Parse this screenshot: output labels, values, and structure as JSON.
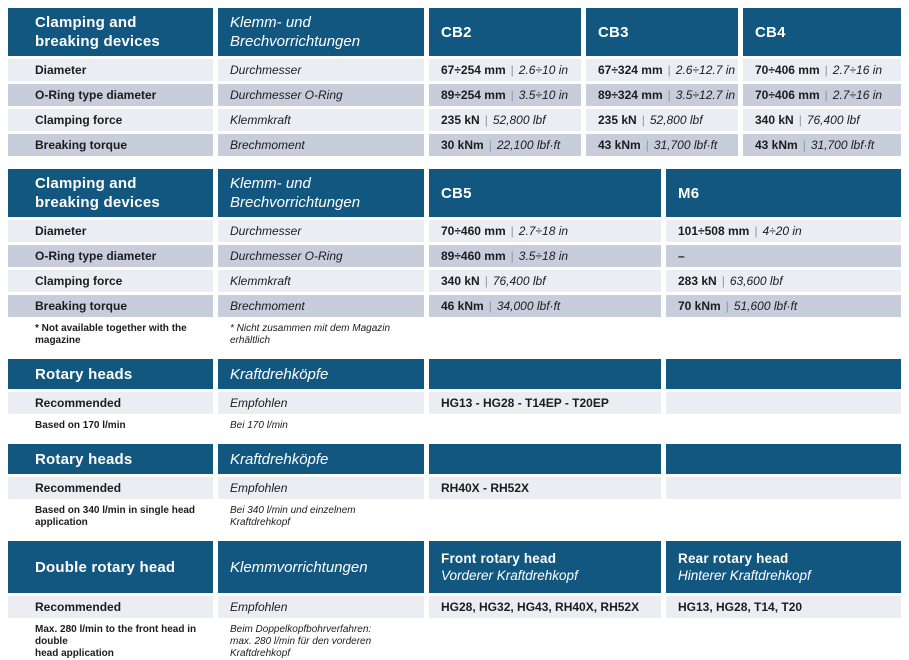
{
  "colors": {
    "header_blue": "#125780",
    "row_light": "#EBEDF3",
    "row_dark": "#C8CDDB",
    "separator": "#8C95A8"
  },
  "table1": {
    "title_en": "Clamping and\nbreaking devices",
    "title_de": "Klemm- und\nBrechvorrichtungen",
    "columns": [
      "CB2",
      "CB3",
      "CB4"
    ],
    "rows": [
      {
        "label_en": "Diameter",
        "label_de": "Durchmesser",
        "values": [
          {
            "metric": "67÷254 mm",
            "sep": "|",
            "imperial": "2.6÷10 in"
          },
          {
            "metric": "67÷324 mm",
            "sep": "|",
            "imperial": "2.6÷12.7 in"
          },
          {
            "metric": "70÷406 mm",
            "sep": "|",
            "imperial": "2.7÷16 in"
          }
        ]
      },
      {
        "label_en": "O-Ring type diameter",
        "label_de": "Durchmesser O-Ring",
        "values": [
          {
            "metric": "89÷254 mm",
            "sep": "|",
            "imperial": "3.5÷10 in"
          },
          {
            "metric": "89÷324 mm",
            "sep": "|",
            "imperial": "3.5÷12.7 in"
          },
          {
            "metric": "70÷406 mm",
            "sep": "|",
            "imperial": "2.7÷16 in"
          }
        ]
      },
      {
        "label_en": "Clamping force",
        "label_de": "Klemmkraft",
        "values": [
          {
            "metric": "235 kN",
            "sep": "|",
            "imperial": "52,800 lbf"
          },
          {
            "metric": "235 kN",
            "sep": "|",
            "imperial": "52,800 lbf"
          },
          {
            "metric": "340 kN",
            "sep": "|",
            "imperial": "76,400 lbf"
          }
        ]
      },
      {
        "label_en": "Breaking torque",
        "label_de": "Brechmoment",
        "values": [
          {
            "metric": "30 kNm",
            "sep": "|",
            "imperial": "22,100 lbf·ft"
          },
          {
            "metric": "43 kNm",
            "sep": "|",
            "imperial": "31,700 lbf·ft"
          },
          {
            "metric": "43 kNm",
            "sep": "|",
            "imperial": "31,700 lbf·ft"
          }
        ]
      }
    ]
  },
  "table2": {
    "title_en": "Clamping and\nbreaking devices",
    "title_de": "Klemm- und\nBrechvorrichtungen",
    "columns": [
      "CB5",
      "M6"
    ],
    "rows": [
      {
        "label_en": "Diameter",
        "label_de": "Durchmesser",
        "values": [
          {
            "metric": "70÷460 mm",
            "sep": "|",
            "imperial": "2.7÷18 in"
          },
          {
            "metric": "101÷508 mm",
            "sep": "|",
            "imperial": "4÷20 in"
          }
        ]
      },
      {
        "label_en": "O-Ring type diameter",
        "label_de": "Durchmesser O-Ring",
        "values": [
          {
            "metric": "89÷460 mm",
            "sep": "|",
            "imperial": "3.5÷18 in"
          },
          {
            "metric": "–",
            "sep": "",
            "imperial": ""
          }
        ]
      },
      {
        "label_en": "Clamping force",
        "label_de": "Klemmkraft",
        "values": [
          {
            "metric": "340 kN",
            "sep": "|",
            "imperial": "76,400 lbf"
          },
          {
            "metric": "283 kN",
            "sep": "|",
            "imperial": "63,600 lbf"
          }
        ]
      },
      {
        "label_en": "Breaking torque",
        "label_de": "Brechmoment",
        "values": [
          {
            "metric": "46 kNm",
            "sep": "|",
            "imperial": "34,000 lbf·ft"
          },
          {
            "metric": "70 kNm",
            "sep": "|",
            "imperial": "51,600 lbf·ft"
          }
        ]
      }
    ],
    "footnote_en": "* Not available together with the magazine",
    "footnote_de": "* Nicht zusammen mit dem Magazin erhältlich"
  },
  "table3": {
    "title_en": "Rotary heads",
    "title_de": "Kraftdrehköpfe",
    "row": {
      "label_en": "Recommended",
      "label_de": "Empfohlen",
      "value": "HG13 - HG28 - T14EP - T20EP",
      "value2": ""
    },
    "footnote_en": "Based on 170 l/min",
    "footnote_de": "Bei 170 l/min"
  },
  "table4": {
    "title_en": "Rotary heads",
    "title_de": "Kraftdrehköpfe",
    "row": {
      "label_en": "Recommended",
      "label_de": "Empfohlen",
      "value": "RH40X - RH52X",
      "value2": ""
    },
    "footnote_en": "Based on 340 l/min in single head application",
    "footnote_de": "Bei 340 l/min und einzelnem Kraftdrehkopf"
  },
  "table5": {
    "title_en": "Double rotary head",
    "title_de": "Klemmvorrichtungen",
    "col3_title_en": "Front rotary head",
    "col3_title_de": "Vorderer Kraftdrehkopf",
    "col4_title_en": "Rear rotary head",
    "col4_title_de": "Hinterer Kraftdrehkopf",
    "row": {
      "label_en": "Recommended",
      "label_de": "Empfohlen",
      "value": "HG28, HG32, HG43, RH40X, RH52X",
      "value2": "HG13, HG28, T14, T20"
    },
    "footnote_en": "Max. 280 l/min to the front head in double\nhead application",
    "footnote_de": "Beim Doppelkopfbohrverfahren:\nmax. 280 l/min für den vorderen Kraftdrehkopf"
  }
}
